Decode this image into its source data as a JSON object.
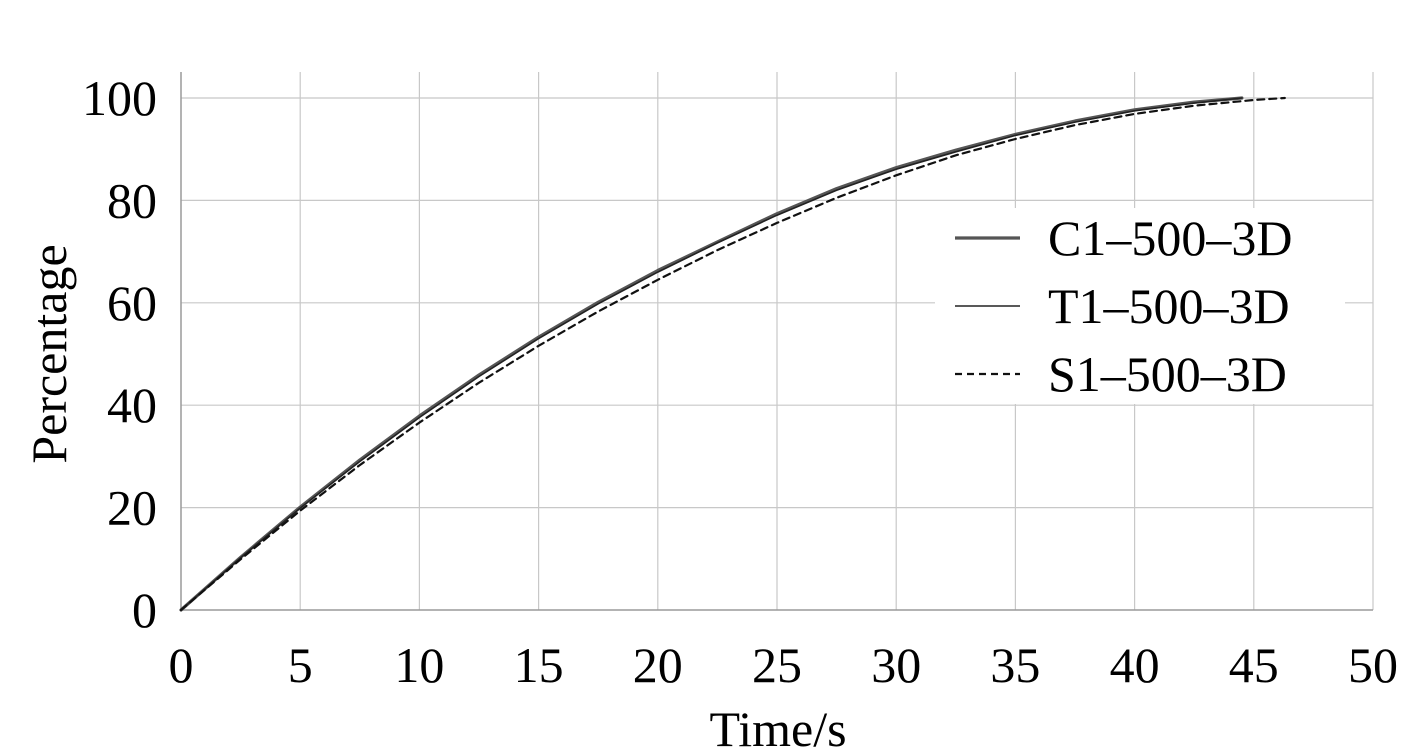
{
  "chart_data": {
    "type": "line",
    "title": "",
    "xlabel": "Time/s",
    "ylabel": "Percentage",
    "xlim": [
      0,
      50
    ],
    "ylim": [
      0,
      100
    ],
    "xticks": [
      0,
      5,
      10,
      15,
      20,
      25,
      30,
      35,
      40,
      45,
      50
    ],
    "yticks": [
      0,
      20,
      40,
      60,
      80,
      100
    ],
    "xtick_labels": [
      "0",
      "5",
      "10",
      "15",
      "20",
      "25",
      "30",
      "35",
      "40",
      "45",
      "50"
    ],
    "ytick_labels": [
      "0",
      "20",
      "40",
      "60",
      "80",
      "100"
    ],
    "grid": true,
    "legend_position": "right",
    "series": [
      {
        "name": "C1–500–3D",
        "style": "solid-thick",
        "color": "#555555",
        "x": [
          0,
          2.5,
          5,
          7.5,
          10,
          12.5,
          15,
          17.5,
          20,
          22.5,
          25,
          27.5,
          30,
          32.5,
          35,
          37.5,
          40,
          42.5,
          44.5
        ],
        "y": [
          0,
          10.3,
          20.1,
          29.3,
          37.9,
          45.9,
          53.3,
          60.1,
          66.3,
          71.9,
          77.4,
          82.3,
          86.4,
          89.8,
          92.9,
          95.5,
          97.7,
          99.2,
          100
        ]
      },
      {
        "name": "T1–500–3D",
        "style": "solid-thin",
        "color": "#222222",
        "x": [
          0,
          2.5,
          5,
          7.5,
          10,
          12.5,
          15,
          17.5,
          20,
          22.5,
          25,
          27.5,
          30,
          32.5,
          35,
          37.5,
          40,
          42.5,
          44.5
        ],
        "y": [
          0,
          10.2,
          19.9,
          29.0,
          37.6,
          45.6,
          53.0,
          59.8,
          66.0,
          71.7,
          77.1,
          82.0,
          86.1,
          89.5,
          92.7,
          95.3,
          97.5,
          99.0,
          100
        ]
      },
      {
        "name": "S1–500–3D",
        "style": "dashed",
        "color": "#111111",
        "x": [
          0,
          2.5,
          5,
          7.5,
          10,
          12.5,
          15,
          17.5,
          20,
          22.5,
          25,
          27.5,
          30,
          32.5,
          35,
          37.5,
          40,
          42.5,
          45,
          46.3
        ],
        "y": [
          0,
          9.9,
          19.4,
          28.3,
          36.6,
          44.4,
          51.6,
          58.3,
          64.5,
          70.3,
          75.6,
          80.5,
          84.9,
          88.8,
          92.0,
          94.7,
          96.9,
          98.5,
          99.6,
          100
        ]
      }
    ]
  }
}
